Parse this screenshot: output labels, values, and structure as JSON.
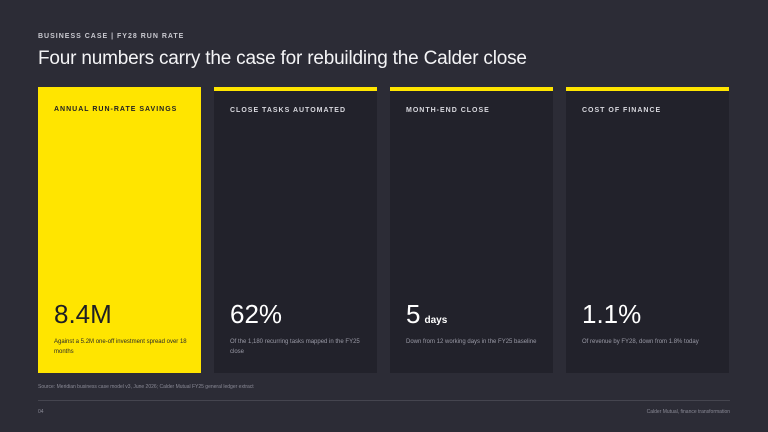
{
  "header": {
    "kicker": "BUSINESS CASE | FY28 RUN RATE",
    "title": "Four numbers carry the case for rebuilding the Calder close"
  },
  "cards": [
    {
      "label": "ANNUAL RUN-RATE SAVINGS",
      "value": "8.4M",
      "unit": "",
      "note": "Against a 5.2M one-off investment spread over 18 months",
      "highlight": true
    },
    {
      "label": "CLOSE TASKS AUTOMATED",
      "value": "62%",
      "unit": "",
      "note": "Of the 1,180 recurring tasks mapped in the FY25 close",
      "highlight": false
    },
    {
      "label": "MONTH-END CLOSE",
      "value": "5",
      "unit": "days",
      "note": "Down from 12 working days in the FY25 baseline",
      "highlight": false
    },
    {
      "label": "COST OF FINANCE",
      "value": "1.1%",
      "unit": "",
      "note": "Of revenue by FY28, down from 1.8% today",
      "highlight": false
    }
  ],
  "footer": {
    "source": "Source: Meridian business case model v3, June 2026; Calder Mutual FY25 general ledger extract",
    "page_number": "04",
    "right_text": "Calder Mutual, finance transformation"
  },
  "colors": {
    "background": "#2c2c36",
    "card": "#22222b",
    "accent": "#ffe500"
  }
}
